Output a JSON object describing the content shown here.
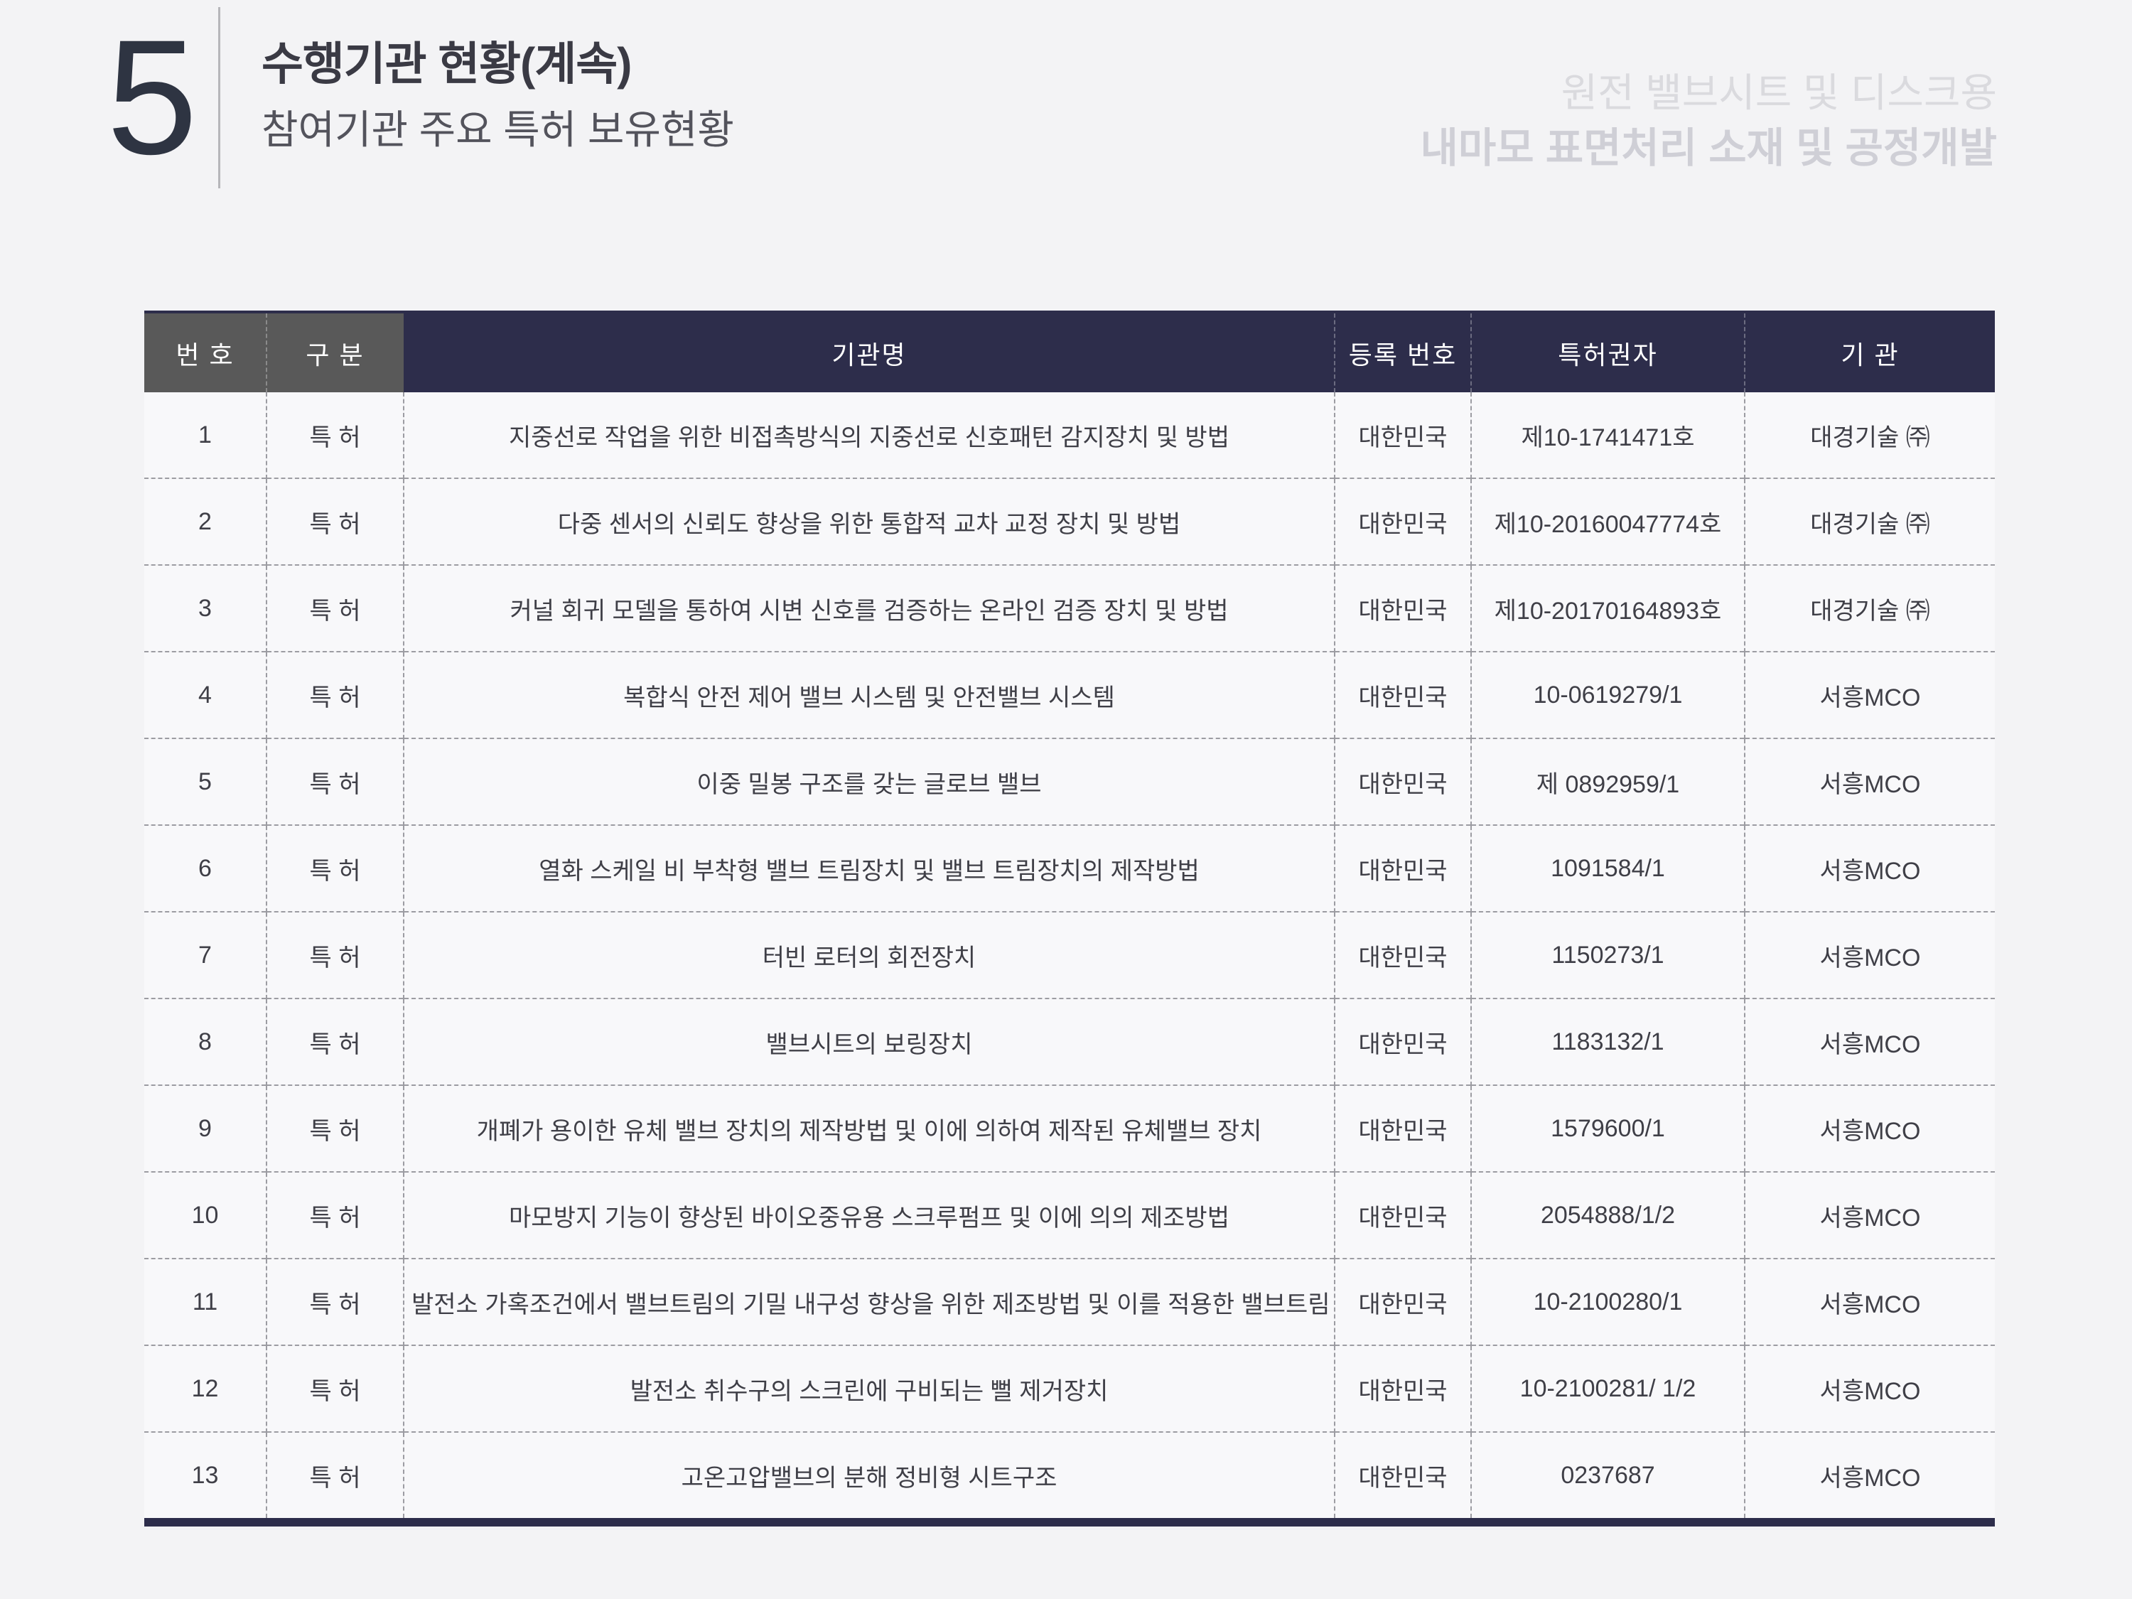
{
  "page": {
    "number": "5",
    "title": "수행기관 현황(계속)",
    "subtitle": "참여기관 주요 특허 보유현황",
    "watermark_line1": "원전 밸브시트 및 디스크용",
    "watermark_line2": "내마모 표면처리 소재 및 공정개발"
  },
  "colors": {
    "header_navy": "#2d2d4b",
    "header_gray": "#595959",
    "accent_dark": "#2e3442",
    "page_background": "#f3f3f5"
  },
  "table": {
    "columns": [
      {
        "key": "no",
        "label": "번 호"
      },
      {
        "key": "category",
        "label": "구 분"
      },
      {
        "key": "title",
        "label": "기관명"
      },
      {
        "key": "country",
        "label": "등록 번호"
      },
      {
        "key": "number",
        "label": "특허권자"
      },
      {
        "key": "org",
        "label": "기 관"
      }
    ],
    "rows": [
      {
        "no": "1",
        "category": "특 허",
        "title": "지중선로 작업을 위한 비접촉방식의 지중선로 신호패턴 감지장치 및 방법",
        "country": "대한민국",
        "number": "제10-1741471호",
        "org": "대경기술 ㈜"
      },
      {
        "no": "2",
        "category": "특 허",
        "title": "다중 센서의 신뢰도 향상을 위한 통합적 교차 교정 장치 및 방법",
        "country": "대한민국",
        "number": "제10-20160047774호",
        "org": "대경기술 ㈜"
      },
      {
        "no": "3",
        "category": "특 허",
        "title": "커널 회귀 모델을 통하여 시변 신호를 검증하는 온라인 검증 장치 및 방법",
        "country": "대한민국",
        "number": "제10-20170164893호",
        "org": "대경기술 ㈜"
      },
      {
        "no": "4",
        "category": "특 허",
        "title": "복합식 안전 제어 밸브 시스템 및 안전밸브 시스템",
        "country": "대한민국",
        "number": "10-0619279/1",
        "org": "서흥MCO"
      },
      {
        "no": "5",
        "category": "특 허",
        "title": "이중 밀봉 구조를 갖는 글로브 밸브",
        "country": "대한민국",
        "number": "제 0892959/1",
        "org": "서흥MCO"
      },
      {
        "no": "6",
        "category": "특 허",
        "title": "열화 스케일 비 부착형 밸브 트림장치 및 밸브 트림장치의 제작방법",
        "country": "대한민국",
        "number": "1091584/1",
        "org": "서흥MCO"
      },
      {
        "no": "7",
        "category": "특 허",
        "title": "터빈 로터의 회전장치",
        "country": "대한민국",
        "number": "1150273/1",
        "org": "서흥MCO"
      },
      {
        "no": "8",
        "category": "특 허",
        "title": "밸브시트의 보링장치",
        "country": "대한민국",
        "number": "1183132/1",
        "org": "서흥MCO"
      },
      {
        "no": "9",
        "category": "특 허",
        "title": "개폐가 용이한 유체 밸브 장치의 제작방법 및 이에 의하여 제작된 유체밸브 장치",
        "country": "대한민국",
        "number": "1579600/1",
        "org": "서흥MCO"
      },
      {
        "no": "10",
        "category": "특 허",
        "title": "마모방지 기능이 향상된 바이오중유용 스크루펌프 및 이에 의의 제조방법",
        "country": "대한민국",
        "number": "2054888/1/2",
        "org": "서흥MCO"
      },
      {
        "no": "11",
        "category": "특 허",
        "title": "발전소 가혹조건에서 밸브트림의 기밀 내구성 향상을 위한 제조방법 및 이를 적용한 밸브트림",
        "country": "대한민국",
        "number": "10-2100280/1",
        "org": "서흥MCO"
      },
      {
        "no": "12",
        "category": "특 허",
        "title": "발전소 취수구의 스크린에 구비되는 뻘 제거장치",
        "country": "대한민국",
        "number": "10-2100281/ 1/2",
        "org": "서흥MCO"
      },
      {
        "no": "13",
        "category": "특 허",
        "title": "고온고압밸브의 분해 정비형 시트구조",
        "country": "대한민국",
        "number": "0237687",
        "org": "서흥MCO"
      }
    ]
  }
}
